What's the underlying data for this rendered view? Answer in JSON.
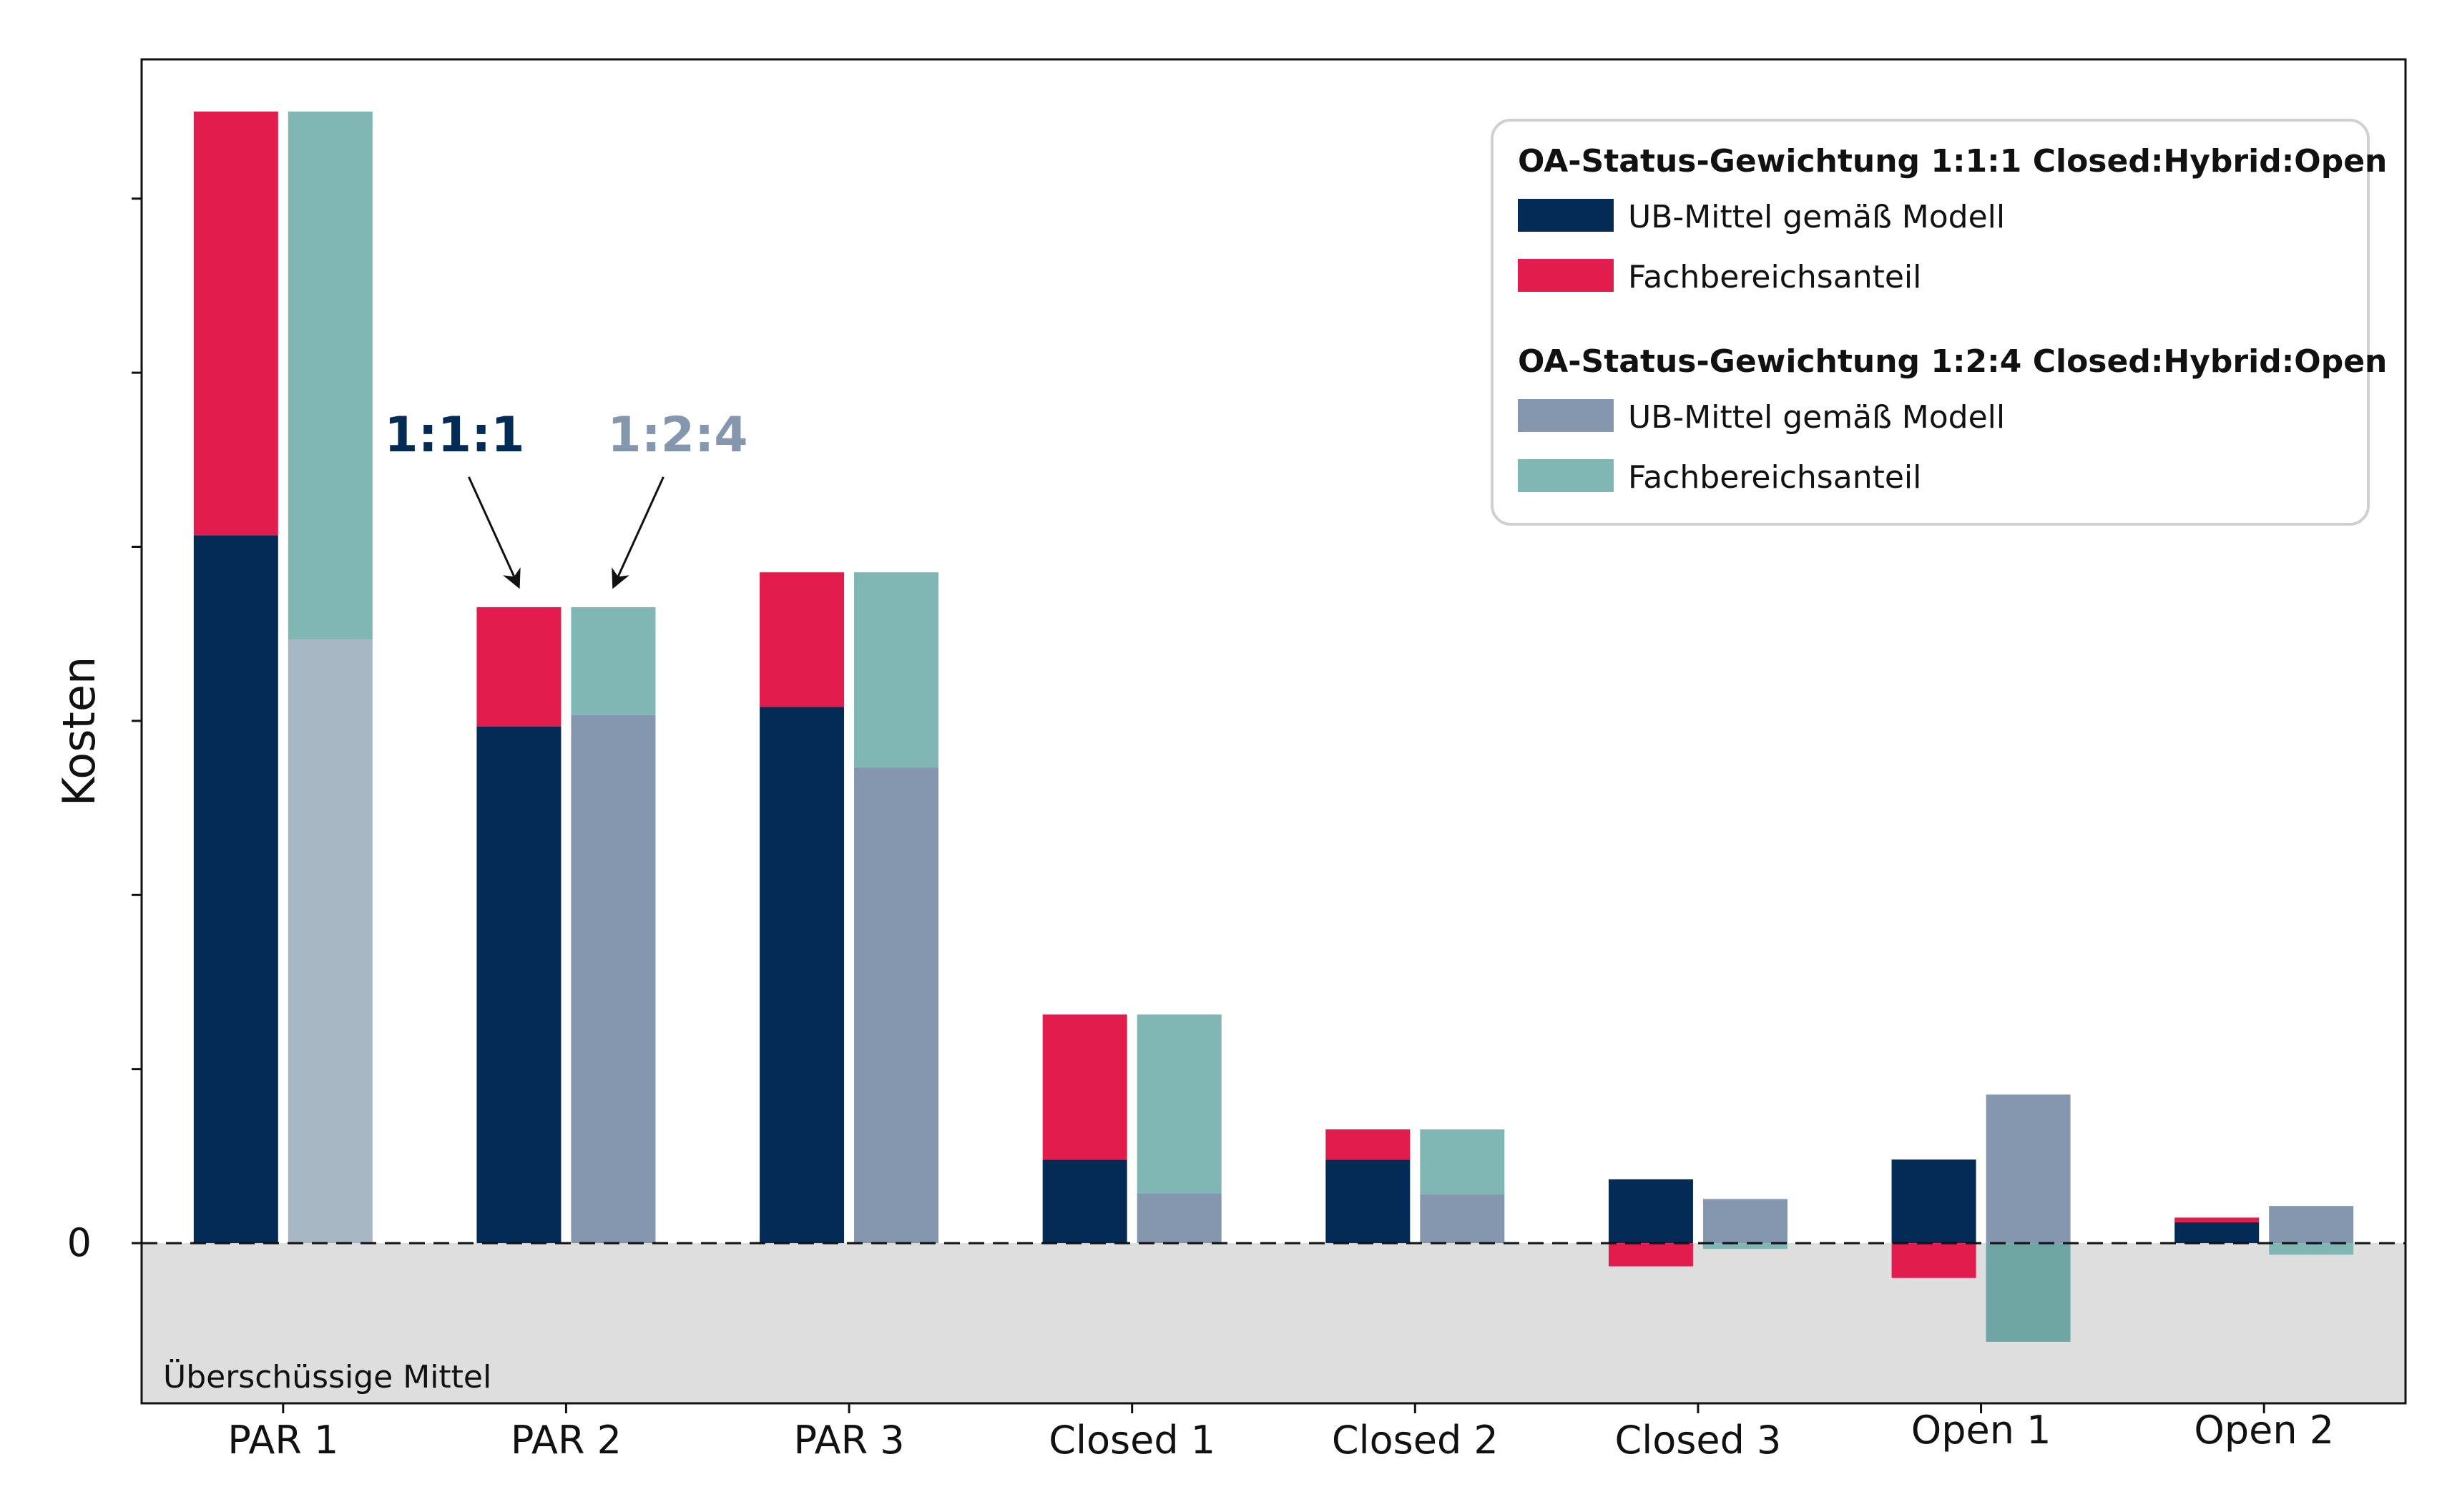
{
  "chart_data": {
    "type": "bar",
    "stacked": true,
    "grouped": true,
    "ylabel": "Kosten",
    "xlabel": "",
    "ylim": [
      -1.38,
      10.2
    ],
    "yticks": [
      0,
      1.5,
      3,
      4.5,
      6,
      7.5,
      9
    ],
    "ytick_labels": [
      "0",
      "",
      "",
      "",
      "",
      "",
      ""
    ],
    "categories": [
      "PAR 1",
      "PAR 2",
      "PAR 3",
      "Closed 1",
      "Closed 2",
      "Closed 3",
      "Open 1",
      "Open 2"
    ],
    "groups": [
      {
        "title": "OA-Status-Gewichtung 1:1:1 Closed:Hybrid:Open",
        "label": "1:1:1",
        "series": [
          {
            "name": "UB-Mittel gemäß Modell",
            "color": "#032b55",
            "values": [
              6.1,
              4.45,
              4.62,
              0.72,
              0.72,
              0.55,
              0.72,
              0.18
            ]
          },
          {
            "name": "Fachbereichsanteil",
            "color": "#e31c4e",
            "values": [
              3.65,
              1.03,
              1.16,
              1.25,
              0.26,
              -0.2,
              -0.3,
              0.04
            ]
          }
        ]
      },
      {
        "title": "OA-Status-Gewichtung 1:2:4 Closed:Hybrid:Open",
        "label": "1:2:4",
        "series": [
          {
            "name": "UB-Mittel gemäß Modell",
            "color": "#8497ae",
            "values": [
              5.2,
              4.55,
              4.1,
              0.43,
              0.42,
              0.38,
              1.28,
              0.32
            ]
          },
          {
            "name": "Fachbereichsanteil",
            "color": "#80b6b4",
            "values": [
              4.55,
              0.93,
              1.68,
              1.54,
              0.56,
              -0.05,
              -0.85,
              -0.1
            ]
          }
        ]
      }
    ],
    "shaded_region": {
      "label": "Überschüssige Mittel",
      "from": -1.38,
      "to": 0,
      "color": "#dedede"
    },
    "reference_line": {
      "y": 0,
      "style": "dashed"
    },
    "legend": {
      "position": "top-right"
    },
    "annotations": [
      {
        "text": "1:1:1",
        "category": "PAR 2",
        "group": 0,
        "color": "#032b55"
      },
      {
        "text": "1:2:4",
        "category": "PAR 2",
        "group": 1,
        "color": "#8497ae"
      }
    ],
    "grid": false
  }
}
